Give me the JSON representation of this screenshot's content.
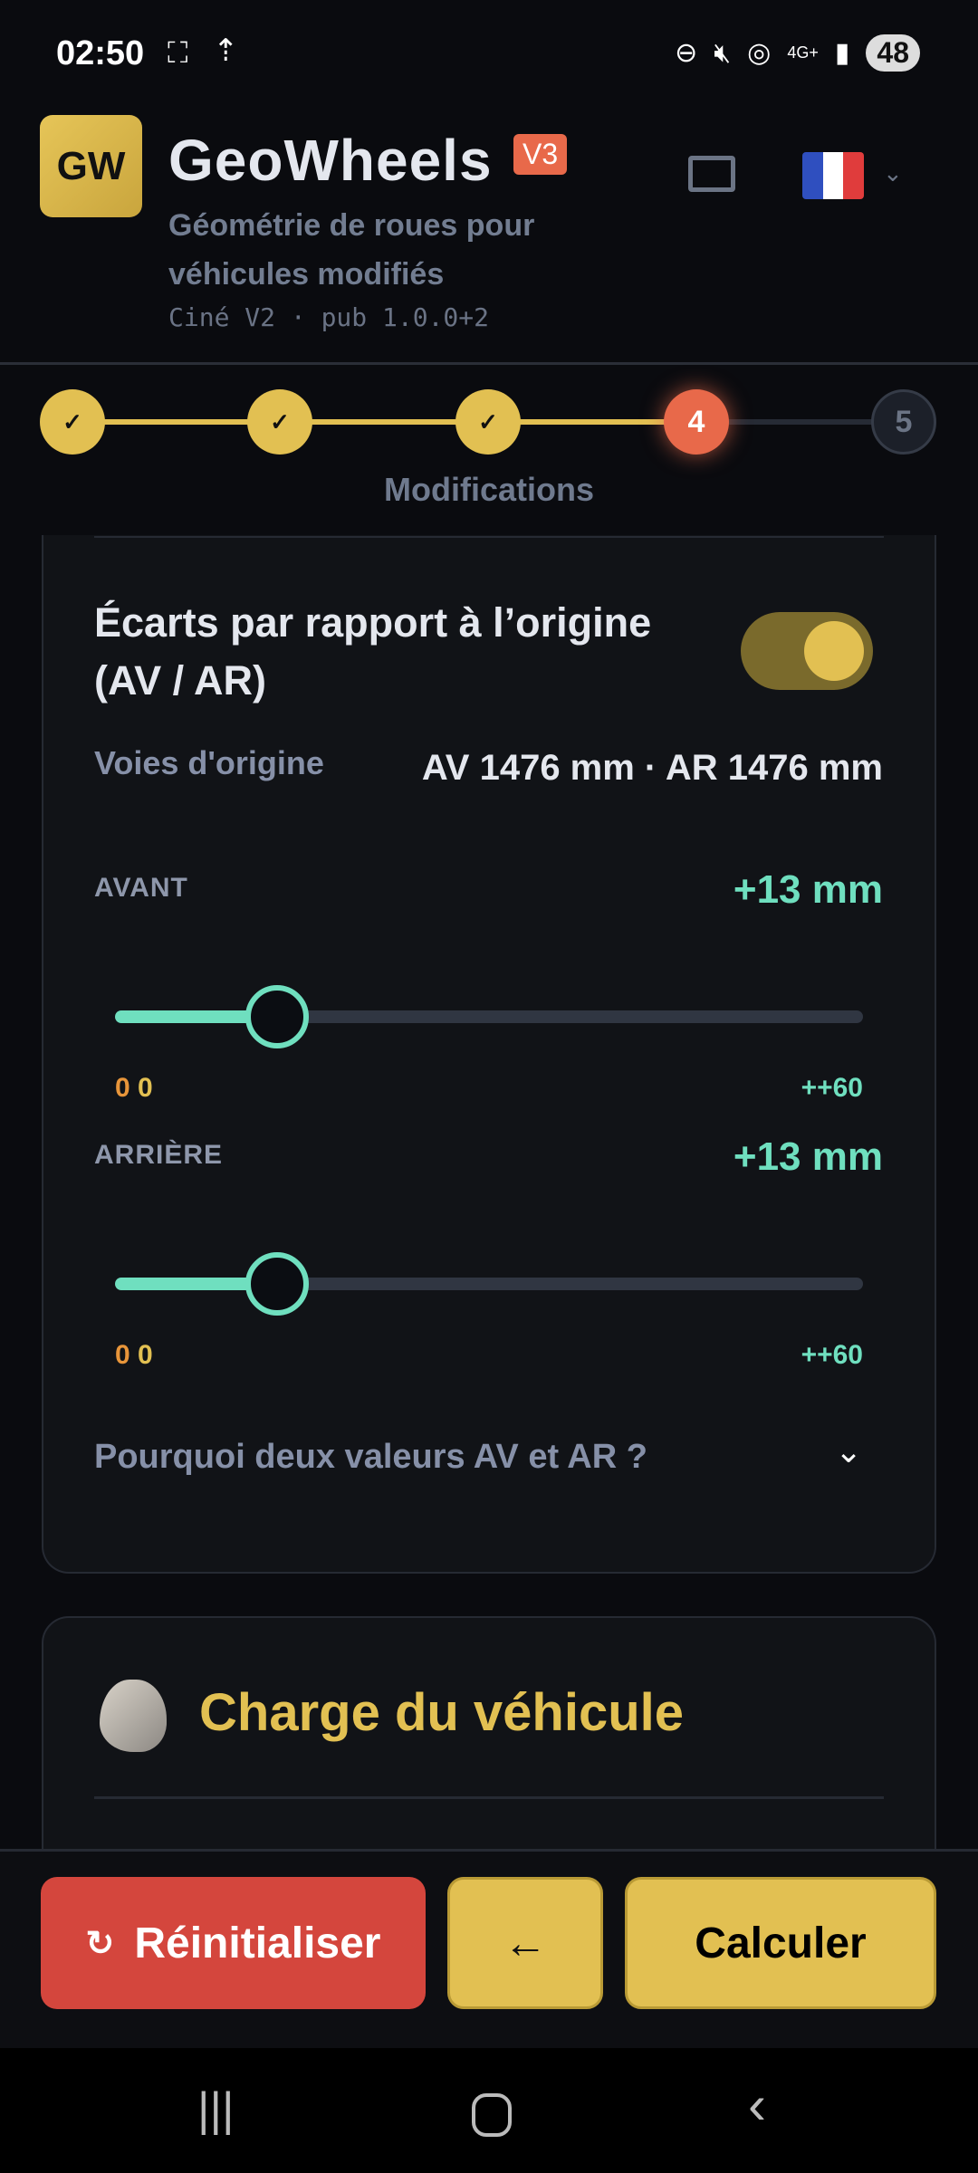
{
  "status": {
    "time": "02:50",
    "network": "4G+",
    "battery": "48"
  },
  "header": {
    "logo": "GW",
    "title": "GeoWheels",
    "version": "V3",
    "subtitle_line1": "Géométrie de roues pour",
    "subtitle_line2": "véhicules modifiés",
    "build": "Ciné V2 · pub 1.0.0+2",
    "language": "fr"
  },
  "stepper": {
    "steps": [
      "✓",
      "✓",
      "✓",
      "4",
      "5"
    ],
    "current": 4,
    "current_label": "Modifications"
  },
  "ecarts": {
    "title": "Écarts par rapport à l’origine (AV / AR)",
    "enabled": true,
    "origin_label": "Voies d'origine",
    "origin_value": "AV 1476 mm · AR 1476 mm",
    "front": {
      "label": "AVANT",
      "value_text": "+13 mm",
      "value": 13,
      "min": 0,
      "max": 60,
      "min_a": "0",
      "min_b": "0",
      "max_label": "++60"
    },
    "rear": {
      "label": "ARRIÈRE",
      "value_text": "+13 mm",
      "value": 13,
      "min": 0,
      "max": 60,
      "min_a": "0",
      "min_b": "0",
      "max_label": "++60"
    },
    "faq": "Pourquoi deux valeurs AV et AR ?"
  },
  "charge": {
    "title": "Charge du véhicule"
  },
  "actions": {
    "reset": "Réinitialiser",
    "back": "←",
    "calculate": "Calculer"
  },
  "colors": {
    "accent": "#e2c052",
    "current_step": "#e8694a",
    "slider": "#6fdfbf",
    "reset": "#d4463d"
  }
}
